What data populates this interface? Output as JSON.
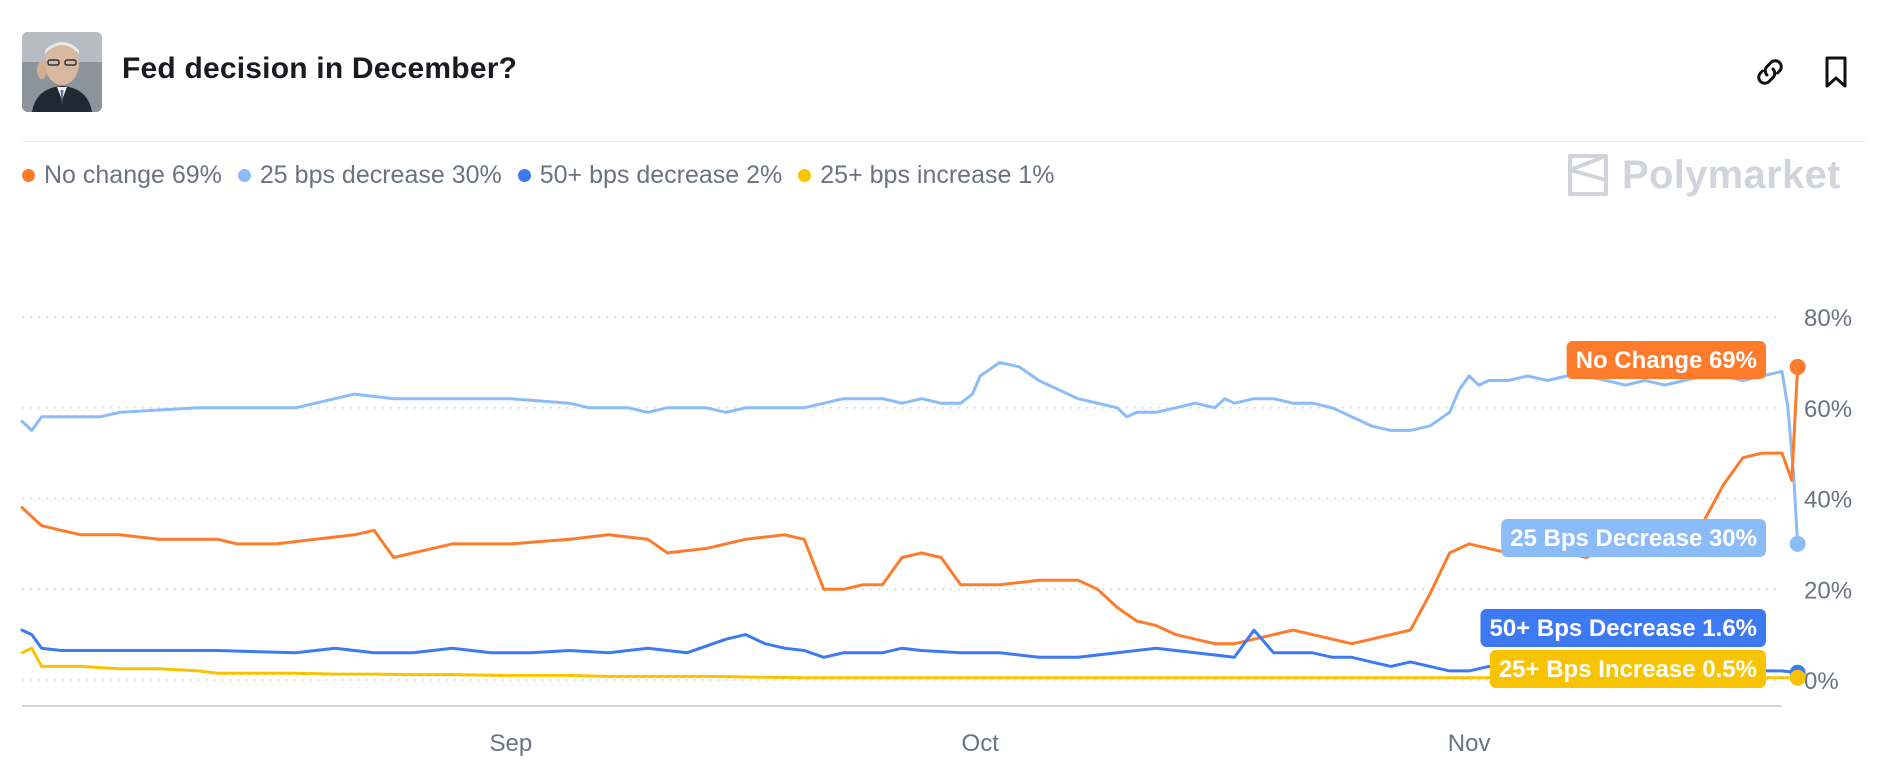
{
  "header": {
    "title": "Fed decision in December?",
    "avatar_alt": "Jerome Powell portrait",
    "link_icon": "link-icon",
    "bookmark_icon": "bookmark-icon"
  },
  "brand": {
    "name": "Polymarket"
  },
  "legend": [
    {
      "label": "No change 69%",
      "color": "#ff7b2c"
    },
    {
      "label": "25 bps decrease 30%",
      "color": "#8cbcf8"
    },
    {
      "label": "50+ bps decrease 2%",
      "color": "#3d79f2"
    },
    {
      "label": "25+ bps increase 1%",
      "color": "#f8c300"
    }
  ],
  "chart_data": {
    "type": "line",
    "title": "Fed decision in December?",
    "xlabel": "",
    "ylabel": "",
    "x_ticks": [
      "Sep",
      "Oct",
      "Nov"
    ],
    "x_range": [
      0,
      90
    ],
    "x_tick_days": [
      25,
      49,
      74
    ],
    "y_ticks": [
      "0%",
      "20%",
      "40%",
      "60%",
      "80%"
    ],
    "ylim": [
      0,
      100
    ],
    "grid": "horizontal-dotted",
    "series": [
      {
        "name": "25 bps decrease",
        "color": "#8cbcf8",
        "end_label": "25 Bps Decrease 30%",
        "points": [
          [
            0,
            57
          ],
          [
            0.5,
            55
          ],
          [
            1,
            58
          ],
          [
            4,
            58
          ],
          [
            5,
            59
          ],
          [
            9,
            60
          ],
          [
            14,
            60
          ],
          [
            17,
            63
          ],
          [
            19,
            62
          ],
          [
            21,
            62
          ],
          [
            23,
            62
          ],
          [
            25,
            62
          ],
          [
            28,
            61
          ],
          [
            29,
            60
          ],
          [
            31,
            60
          ],
          [
            32,
            59
          ],
          [
            33,
            60
          ],
          [
            35,
            60
          ],
          [
            36,
            59
          ],
          [
            37,
            60
          ],
          [
            39,
            60
          ],
          [
            40,
            60
          ],
          [
            41,
            61
          ],
          [
            42,
            62
          ],
          [
            43,
            62
          ],
          [
            44,
            62
          ],
          [
            45,
            61
          ],
          [
            46,
            62
          ],
          [
            47,
            61
          ],
          [
            48,
            61
          ],
          [
            48.6,
            63
          ],
          [
            49,
            67
          ],
          [
            50,
            70
          ],
          [
            51,
            69
          ],
          [
            52,
            66
          ],
          [
            53,
            64
          ],
          [
            54,
            62
          ],
          [
            55,
            61
          ],
          [
            56,
            60
          ],
          [
            56.5,
            58
          ],
          [
            57,
            59
          ],
          [
            58,
            59
          ],
          [
            59,
            60
          ],
          [
            60,
            61
          ],
          [
            61,
            60
          ],
          [
            61.5,
            62
          ],
          [
            62,
            61
          ],
          [
            63,
            62
          ],
          [
            64,
            62
          ],
          [
            65,
            61
          ],
          [
            66,
            61
          ],
          [
            67,
            60
          ],
          [
            68,
            58
          ],
          [
            69,
            56
          ],
          [
            70,
            55
          ],
          [
            71,
            55
          ],
          [
            72,
            56
          ],
          [
            73,
            59
          ],
          [
            73.5,
            64
          ],
          [
            74,
            67
          ],
          [
            74.5,
            65
          ],
          [
            75,
            66
          ],
          [
            76,
            66
          ],
          [
            77,
            67
          ],
          [
            78,
            66
          ],
          [
            79,
            67
          ],
          [
            80,
            67
          ],
          [
            81,
            66
          ],
          [
            82,
            65
          ],
          [
            83,
            66
          ],
          [
            84,
            65
          ],
          [
            85,
            66
          ],
          [
            86,
            67
          ],
          [
            87,
            67
          ],
          [
            88,
            66
          ],
          [
            89,
            67
          ],
          [
            90,
            68
          ],
          [
            90.3,
            60
          ],
          [
            90.6,
            45
          ],
          [
            90.8,
            30
          ]
        ]
      },
      {
        "name": "No change",
        "color": "#ff7b2c",
        "end_label": "No Change 69%",
        "points": [
          [
            0,
            38
          ],
          [
            1,
            34
          ],
          [
            2,
            33
          ],
          [
            3,
            32
          ],
          [
            5,
            32
          ],
          [
            7,
            31
          ],
          [
            10,
            31
          ],
          [
            11,
            30
          ],
          [
            13,
            30
          ],
          [
            15,
            31
          ],
          [
            17,
            32
          ],
          [
            18,
            33
          ],
          [
            19,
            27
          ],
          [
            20,
            28
          ],
          [
            22,
            30
          ],
          [
            25,
            30
          ],
          [
            28,
            31
          ],
          [
            30,
            32
          ],
          [
            32,
            31
          ],
          [
            33,
            28
          ],
          [
            35,
            29
          ],
          [
            37,
            31
          ],
          [
            39,
            32
          ],
          [
            40,
            31
          ],
          [
            41,
            20
          ],
          [
            42,
            20
          ],
          [
            43,
            21
          ],
          [
            44,
            21
          ],
          [
            45,
            27
          ],
          [
            46,
            28
          ],
          [
            47,
            27
          ],
          [
            48,
            21
          ],
          [
            50,
            21
          ],
          [
            52,
            22
          ],
          [
            54,
            22
          ],
          [
            55,
            20
          ],
          [
            56,
            16
          ],
          [
            57,
            13
          ],
          [
            58,
            12
          ],
          [
            59,
            10
          ],
          [
            60,
            9
          ],
          [
            61,
            8
          ],
          [
            62,
            8
          ],
          [
            63,
            9
          ],
          [
            64,
            10
          ],
          [
            65,
            11
          ],
          [
            66,
            10
          ],
          [
            67,
            9
          ],
          [
            68,
            8
          ],
          [
            69,
            9
          ],
          [
            70,
            10
          ],
          [
            71,
            11
          ],
          [
            72,
            19
          ],
          [
            73,
            28
          ],
          [
            74,
            30
          ],
          [
            75,
            29
          ],
          [
            76,
            28
          ],
          [
            77,
            29
          ],
          [
            78,
            30
          ],
          [
            79,
            28
          ],
          [
            80,
            27
          ],
          [
            81,
            29
          ],
          [
            82,
            30
          ],
          [
            83,
            28
          ],
          [
            84,
            29
          ],
          [
            85,
            30
          ],
          [
            86,
            35
          ],
          [
            87,
            43
          ],
          [
            88,
            49
          ],
          [
            89,
            50
          ],
          [
            90,
            50
          ],
          [
            90.5,
            44
          ],
          [
            90.8,
            69
          ]
        ]
      },
      {
        "name": "50+ bps decrease",
        "color": "#3d79f2",
        "end_label": "50+ Bps Decrease 1.6%",
        "points": [
          [
            0,
            11
          ],
          [
            0.5,
            10
          ],
          [
            1,
            7
          ],
          [
            2,
            6.5
          ],
          [
            5,
            6.5
          ],
          [
            10,
            6.5
          ],
          [
            14,
            6
          ],
          [
            16,
            7
          ],
          [
            18,
            6
          ],
          [
            20,
            6
          ],
          [
            22,
            7
          ],
          [
            24,
            6
          ],
          [
            26,
            6
          ],
          [
            28,
            6.5
          ],
          [
            30,
            6
          ],
          [
            32,
            7
          ],
          [
            34,
            6
          ],
          [
            36,
            9
          ],
          [
            37,
            10
          ],
          [
            38,
            8
          ],
          [
            39,
            7
          ],
          [
            40,
            6.5
          ],
          [
            41,
            5
          ],
          [
            42,
            6
          ],
          [
            43,
            6
          ],
          [
            44,
            6
          ],
          [
            45,
            7
          ],
          [
            46,
            6.5
          ],
          [
            48,
            6
          ],
          [
            50,
            6
          ],
          [
            52,
            5
          ],
          [
            54,
            5
          ],
          [
            56,
            6
          ],
          [
            58,
            7
          ],
          [
            60,
            6
          ],
          [
            62,
            5
          ],
          [
            63,
            11
          ],
          [
            64,
            6
          ],
          [
            65,
            6
          ],
          [
            66,
            6
          ],
          [
            67,
            5
          ],
          [
            68,
            5
          ],
          [
            69,
            4
          ],
          [
            70,
            3
          ],
          [
            71,
            4
          ],
          [
            72,
            3
          ],
          [
            73,
            2
          ],
          [
            74,
            2
          ],
          [
            75,
            3
          ],
          [
            76,
            2
          ],
          [
            77,
            2
          ],
          [
            78,
            2
          ],
          [
            80,
            2
          ],
          [
            82,
            2
          ],
          [
            84,
            2
          ],
          [
            86,
            2
          ],
          [
            88,
            2
          ],
          [
            90,
            2
          ],
          [
            90.8,
            1.6
          ]
        ]
      },
      {
        "name": "25+ bps increase",
        "color": "#f8c300",
        "end_label": "25+ Bps Increase 0.5%",
        "points": [
          [
            0,
            6
          ],
          [
            0.5,
            7
          ],
          [
            1,
            3
          ],
          [
            3,
            3
          ],
          [
            5,
            2.5
          ],
          [
            7,
            2.5
          ],
          [
            9,
            2
          ],
          [
            10,
            1.5
          ],
          [
            12,
            1.5
          ],
          [
            14,
            1.5
          ],
          [
            16,
            1.3
          ],
          [
            18,
            1.3
          ],
          [
            20,
            1.2
          ],
          [
            22,
            1.2
          ],
          [
            25,
            1
          ],
          [
            28,
            1
          ],
          [
            30,
            0.8
          ],
          [
            35,
            0.8
          ],
          [
            38,
            0.6
          ],
          [
            40,
            0.5
          ],
          [
            45,
            0.5
          ],
          [
            50,
            0.5
          ],
          [
            55,
            0.5
          ],
          [
            60,
            0.5
          ],
          [
            65,
            0.5
          ],
          [
            70,
            0.5
          ],
          [
            75,
            0.5
          ],
          [
            80,
            0.5
          ],
          [
            85,
            0.5
          ],
          [
            90,
            0.5
          ],
          [
            90.8,
            0.5
          ]
        ]
      }
    ]
  }
}
